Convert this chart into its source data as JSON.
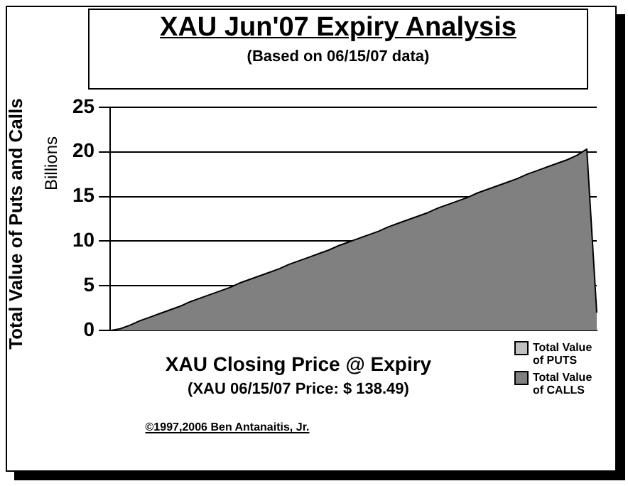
{
  "chart_data": {
    "type": "area",
    "title": "XAU Jun'07 Expiry Analysis",
    "subtitle": "(Based on 06/15/07 data)",
    "xlabel": "XAU Closing Price @ Expiry",
    "ylabel": "Total Value of Puts and Calls",
    "annotations": [
      "Billions",
      "(XAU 06/15/07 Price: $ 138.49)",
      "©1997,2006 Ben Antanaitis, Jr."
    ],
    "categories": [
      null,
      null,
      null,
      null,
      null,
      null,
      null,
      null,
      null,
      null,
      null,
      null,
      null,
      null,
      null,
      null,
      null,
      null,
      null,
      null,
      null,
      null,
      null,
      null,
      null,
      null,
      null,
      null,
      null,
      null,
      null,
      null,
      null,
      null,
      null,
      null,
      null,
      null,
      null,
      null,
      null,
      null,
      null,
      null,
      null,
      null,
      null,
      null,
      null,
      null
    ],
    "series": [
      {
        "name": "Total Value of PUTS",
        "color": "#c0c0c0",
        "values": [
          null,
          null,
          null,
          null,
          null,
          null,
          null,
          null,
          null,
          null,
          null,
          null,
          null,
          null,
          null,
          null,
          null,
          null,
          null,
          null,
          null,
          null,
          null,
          null,
          null,
          null,
          null,
          null,
          null,
          null,
          null,
          null,
          null,
          null,
          null,
          null,
          null,
          null,
          null,
          null,
          null,
          null,
          null,
          null,
          null,
          null,
          null,
          null,
          null,
          null
        ]
      },
      {
        "name": "Total Value of CALLS",
        "color": "#808080",
        "values": [
          0,
          0.2,
          0.6,
          1.1,
          1.5,
          1.9,
          2.3,
          2.7,
          3.2,
          3.6,
          4.0,
          4.4,
          4.8,
          5.3,
          5.7,
          6.1,
          6.5,
          6.9,
          7.4,
          7.8,
          8.2,
          8.6,
          9.0,
          9.5,
          9.9,
          10.3,
          10.7,
          11.1,
          11.6,
          12.0,
          12.4,
          12.8,
          13.2,
          13.7,
          14.1,
          14.5,
          14.9,
          15.4,
          15.8,
          16.2,
          16.6,
          17.0,
          17.5,
          17.9,
          18.3,
          18.7,
          19.1,
          19.6,
          20.3,
          2.0
        ]
      }
    ],
    "ylim": [
      0,
      25
    ],
    "yticks": [
      0,
      5,
      10,
      15,
      20,
      25
    ],
    "grid": "y",
    "legend": "bottom right",
    "tick_labels": "y"
  }
}
